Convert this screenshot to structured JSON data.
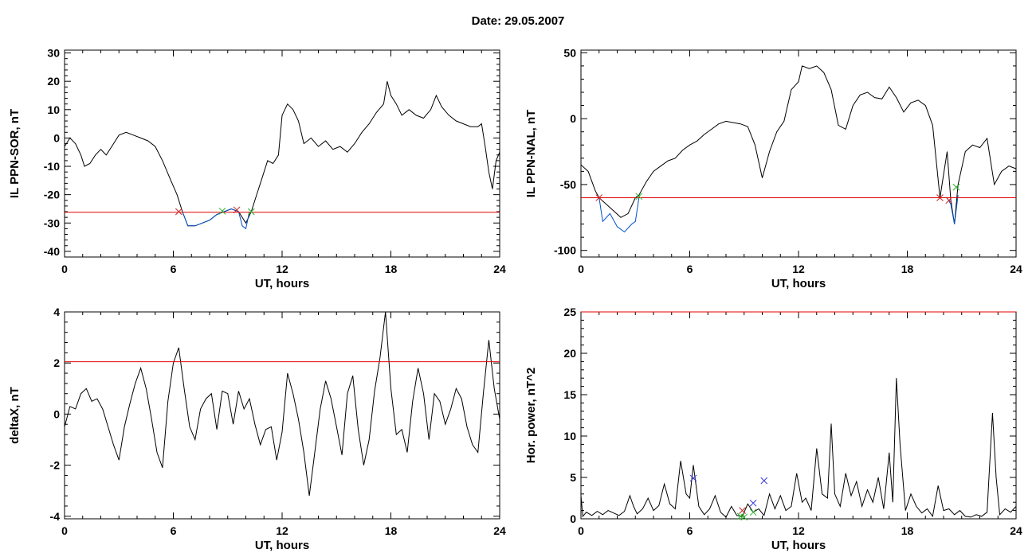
{
  "title": "Date:  29.05.2007",
  "chart_data": [
    {
      "type": "line",
      "xlabel": "UT, hours",
      "ylabel": "IL PPN-SOR, nT",
      "xlim": [
        0,
        24
      ],
      "ylim": [
        -42,
        31
      ],
      "xticks": [
        0,
        6,
        12,
        18,
        24
      ],
      "yticks": [
        -40,
        -30,
        -20,
        -10,
        0,
        10,
        20,
        30
      ],
      "threshold": -26.2,
      "series": [
        {
          "color": "#000000",
          "x": [
            0,
            0.3,
            0.6,
            0.9,
            1.1,
            1.4,
            1.7,
            2.0,
            2.3,
            2.6,
            3.0,
            3.4,
            3.8,
            4.2,
            4.6,
            5.0,
            5.4,
            5.8,
            6.2,
            6.5,
            6.8,
            7.2,
            7.6,
            8.0,
            8.4,
            8.8,
            9.2,
            9.6,
            10.0,
            10.3,
            10.6,
            10.9,
            11.2,
            11.5,
            11.8,
            12.0,
            12.3,
            12.6,
            12.9,
            13.2,
            13.6,
            14.0,
            14.4,
            14.8,
            15.2,
            15.6,
            16.0,
            16.4,
            16.8,
            17.2,
            17.6,
            17.8,
            18.0,
            18.3,
            18.6,
            19.0,
            19.4,
            19.8,
            20.2,
            20.5,
            20.8,
            21.2,
            21.6,
            22.0,
            22.4,
            22.8,
            23.0,
            23.2,
            23.4,
            23.6,
            23.8,
            24.0
          ],
          "y": [
            -3,
            0,
            -2,
            -6,
            -10,
            -9,
            -6,
            -4,
            -6,
            -3,
            1,
            2,
            1,
            0,
            -1,
            -3,
            -8,
            -14,
            -20,
            -26,
            -31,
            -31,
            -30,
            -29,
            -27,
            -26,
            -25,
            -26,
            -30,
            -26,
            -20,
            -14,
            -8,
            -9,
            -6,
            8,
            12,
            10,
            6,
            -2,
            0,
            -3,
            -1,
            -4,
            -3,
            -5,
            -2,
            2,
            5,
            9,
            12,
            20,
            15,
            12,
            8,
            10,
            8,
            7,
            10,
            15,
            11,
            8,
            6,
            5,
            4,
            4,
            5,
            -3,
            -12,
            -18,
            -8,
            -5
          ]
        },
        {
          "color": "#0050c8",
          "x": [
            6.5,
            6.8,
            7.2,
            7.6,
            8.0,
            8.4,
            8.8,
            9.2,
            9.6,
            9.8,
            10.0,
            10.2
          ],
          "y": [
            -26,
            -31,
            -31,
            -30,
            -29,
            -27,
            -26,
            -25,
            -26,
            -31,
            -32,
            -26
          ]
        }
      ],
      "markers": [
        {
          "x": 6.3,
          "y": -26,
          "color": "#c82828"
        },
        {
          "x": 8.7,
          "y": -25.8,
          "color": "#28b428"
        },
        {
          "x": 9.5,
          "y": -25.4,
          "color": "#c82828"
        },
        {
          "x": 10.3,
          "y": -26,
          "color": "#28b428"
        }
      ]
    },
    {
      "type": "line",
      "xlabel": "UT, hours",
      "ylabel": "IL PPN-NAL, nT",
      "xlim": [
        0,
        24
      ],
      "ylim": [
        -105,
        52
      ],
      "xticks": [
        0,
        6,
        12,
        18,
        24
      ],
      "yticks": [
        -100,
        -50,
        0,
        50
      ],
      "threshold": -60,
      "series": [
        {
          "color": "#000000",
          "x": [
            0,
            0.4,
            0.8,
            1.0,
            1.4,
            1.8,
            2.2,
            2.6,
            3.0,
            3.2,
            3.6,
            4.0,
            4.4,
            4.8,
            5.2,
            5.6,
            6.0,
            6.4,
            6.8,
            7.2,
            7.6,
            8.0,
            8.4,
            8.8,
            9.2,
            9.6,
            10.0,
            10.4,
            10.8,
            11.2,
            11.6,
            12.0,
            12.2,
            12.6,
            13.0,
            13.4,
            13.8,
            14.2,
            14.6,
            15.0,
            15.4,
            15.8,
            16.2,
            16.6,
            17.0,
            17.4,
            17.8,
            18.2,
            18.6,
            19.0,
            19.4,
            19.8,
            20.2,
            20.4,
            20.6,
            20.8,
            21.2,
            21.6,
            22.0,
            22.4,
            22.8,
            23.2,
            23.6,
            24.0
          ],
          "y": [
            -35,
            -40,
            -55,
            -60,
            -65,
            -70,
            -75,
            -72,
            -60,
            -58,
            -48,
            -40,
            -36,
            -32,
            -30,
            -24,
            -20,
            -17,
            -12,
            -8,
            -4,
            -2,
            -3,
            -4,
            -6,
            -20,
            -45,
            -25,
            -10,
            -2,
            22,
            28,
            40,
            38,
            40,
            35,
            22,
            -5,
            -8,
            10,
            18,
            20,
            16,
            15,
            24,
            16,
            5,
            12,
            14,
            10,
            -5,
            -60,
            -25,
            -62,
            -80,
            -50,
            -25,
            -20,
            -22,
            -15,
            -50,
            -40,
            -36,
            -38
          ]
        },
        {
          "color": "#0050c8",
          "x": [
            1.0,
            1.2,
            1.6,
            2.0,
            2.4,
            2.8,
            3.0,
            3.2
          ],
          "y": [
            -60,
            -78,
            -72,
            -82,
            -86,
            -80,
            -78,
            -60
          ]
        },
        {
          "color": "#0050c8",
          "x": [
            20.2,
            20.4,
            20.6,
            20.8
          ],
          "y": [
            -60,
            -65,
            -80,
            -58
          ]
        }
      ],
      "markers": [
        {
          "x": 1.0,
          "y": -60,
          "color": "#c82828"
        },
        {
          "x": 3.2,
          "y": -59,
          "color": "#28b428"
        },
        {
          "x": 19.8,
          "y": -60,
          "color": "#c82828"
        },
        {
          "x": 20.3,
          "y": -62,
          "color": "#c82828"
        },
        {
          "x": 20.7,
          "y": -52,
          "color": "#28b428"
        }
      ]
    },
    {
      "type": "line",
      "xlabel": "UT, hours",
      "ylabel": "deltaX, nT",
      "xlim": [
        0,
        24
      ],
      "ylim": [
        -4.1,
        4.0
      ],
      "xticks": [
        0,
        6,
        12,
        18,
        24
      ],
      "yticks": [
        -4,
        -2,
        0,
        2,
        4
      ],
      "threshold": 2.05,
      "series": [
        {
          "color": "#000000",
          "x": [
            0,
            0.3,
            0.6,
            0.9,
            1.2,
            1.5,
            1.8,
            2.1,
            2.4,
            2.7,
            3.0,
            3.3,
            3.6,
            3.9,
            4.2,
            4.5,
            4.8,
            5.1,
            5.4,
            5.7,
            6.0,
            6.3,
            6.6,
            6.9,
            7.2,
            7.5,
            7.8,
            8.1,
            8.4,
            8.7,
            9.0,
            9.3,
            9.6,
            9.9,
            10.2,
            10.5,
            10.8,
            11.1,
            11.4,
            11.7,
            12.0,
            12.3,
            12.6,
            12.9,
            13.2,
            13.5,
            13.8,
            14.1,
            14.4,
            14.7,
            15.0,
            15.3,
            15.6,
            15.9,
            16.2,
            16.5,
            16.8,
            17.1,
            17.4,
            17.7,
            18.0,
            18.3,
            18.6,
            18.9,
            19.2,
            19.5,
            19.8,
            20.1,
            20.4,
            20.7,
            21.0,
            21.3,
            21.6,
            21.9,
            22.2,
            22.5,
            22.8,
            23.1,
            23.4,
            23.7,
            24.0
          ],
          "y": [
            -0.5,
            0.3,
            0.2,
            0.8,
            1.0,
            0.5,
            0.6,
            0.2,
            -0.5,
            -1.2,
            -1.8,
            -0.5,
            0.4,
            1.2,
            1.8,
            1.0,
            -0.2,
            -1.5,
            -2.1,
            0.5,
            2.0,
            2.6,
            1.0,
            -0.5,
            -1.0,
            0.2,
            0.6,
            0.8,
            -0.6,
            0.9,
            0.8,
            -0.4,
            0.9,
            0.2,
            0.6,
            -0.4,
            -1.2,
            -0.6,
            -0.5,
            -1.8,
            -0.7,
            1.6,
            0.8,
            -0.2,
            -1.5,
            -3.2,
            -1.5,
            0.2,
            1.3,
            0.6,
            -0.5,
            -1.6,
            0.8,
            1.5,
            -0.6,
            -2.0,
            -1.0,
            0.9,
            2.2,
            4.0,
            1.0,
            -0.8,
            -0.6,
            -1.5,
            0.5,
            1.8,
            0.8,
            -1.0,
            0.8,
            0.5,
            -0.4,
            0.2,
            1.0,
            0.6,
            -0.5,
            -1.2,
            -1.5,
            0.8,
            2.9,
            1.0,
            -0.2
          ]
        }
      ],
      "markers": []
    },
    {
      "type": "line",
      "xlabel": "UT, hours",
      "ylabel": "Hor. power, nT^2",
      "xlim": [
        0,
        24
      ],
      "ylim": [
        0,
        25
      ],
      "xticks": [
        0,
        6,
        12,
        18,
        24
      ],
      "yticks": [
        0,
        5,
        10,
        15,
        20,
        25
      ],
      "threshold": 25,
      "series": [
        {
          "color": "#000000",
          "x": [
            0,
            0.1,
            0.3,
            0.6,
            0.9,
            1.2,
            1.5,
            1.8,
            2.1,
            2.4,
            2.7,
            2.9,
            3.1,
            3.4,
            3.7,
            4.0,
            4.3,
            4.6,
            4.9,
            5.2,
            5.5,
            5.8,
            6.0,
            6.2,
            6.5,
            6.8,
            7.1,
            7.4,
            7.7,
            8.0,
            8.3,
            8.6,
            8.9,
            9.2,
            9.5,
            9.8,
            10.1,
            10.4,
            10.7,
            11.0,
            11.3,
            11.6,
            11.9,
            12.2,
            12.4,
            12.7,
            13.0,
            13.3,
            13.6,
            13.8,
            14.0,
            14.3,
            14.6,
            14.9,
            15.2,
            15.5,
            15.8,
            16.1,
            16.4,
            16.7,
            17.0,
            17.2,
            17.4,
            17.6,
            17.9,
            18.2,
            18.5,
            18.8,
            19.1,
            19.4,
            19.7,
            20.0,
            20.3,
            20.6,
            20.9,
            21.2,
            21.5,
            21.8,
            22.1,
            22.4,
            22.7,
            22.9,
            23.1,
            23.4,
            23.7,
            24.0
          ],
          "y": [
            2.8,
            0.3,
            0.8,
            0.4,
            0.9,
            0.5,
            1.0,
            0.7,
            0.4,
            0.9,
            2.8,
            1.5,
            0.6,
            1.2,
            2.5,
            1.0,
            1.6,
            4.2,
            1.8,
            1.2,
            7.0,
            3.0,
            2.5,
            6.5,
            1.5,
            0.5,
            1.2,
            2.8,
            0.8,
            0.2,
            1.5,
            0.4,
            0.3,
            1.8,
            0.8,
            1.2,
            0.4,
            3.0,
            1.2,
            2.8,
            1.0,
            1.5,
            5.5,
            2.0,
            2.5,
            1.0,
            8.5,
            3.0,
            2.5,
            11.5,
            3.0,
            1.5,
            5.5,
            2.8,
            4.5,
            1.5,
            3.5,
            2.0,
            5.0,
            1.2,
            8.0,
            2.0,
            17.0,
            9.0,
            1.0,
            3.0,
            1.5,
            0.7,
            1.2,
            0.3,
            4.0,
            1.0,
            1.2,
            0.5,
            1.0,
            0.3,
            0.2,
            0.5,
            0.3,
            0.8,
            12.8,
            5.0,
            0.5,
            1.2,
            0.8,
            1.5
          ]
        }
      ],
      "markers": [
        {
          "x": 6.2,
          "y": 4.9,
          "color": "#3c3cdc"
        },
        {
          "x": 8.8,
          "y": 0.3,
          "color": "#28b428"
        },
        {
          "x": 8.9,
          "y": 1.0,
          "color": "#c82828"
        },
        {
          "x": 9.5,
          "y": 0.8,
          "color": "#28b428"
        },
        {
          "x": 9.5,
          "y": 1.9,
          "color": "#3c3cdc"
        },
        {
          "x": 10.1,
          "y": 4.6,
          "color": "#3c3cdc"
        },
        {
          "x": 9.0,
          "y": 0.2,
          "color": "#28b428"
        }
      ]
    }
  ]
}
